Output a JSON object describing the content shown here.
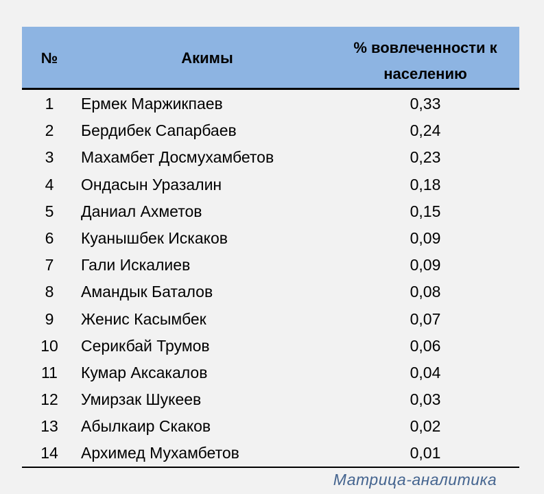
{
  "table": {
    "headers": {
      "num": "№",
      "name": "Акимы",
      "value": "% вовлеченности к населению"
    },
    "rows": [
      {
        "num": "1",
        "name": "Ермек Маржикпаев",
        "value": "0,33"
      },
      {
        "num": "2",
        "name": "Бердибек Сапарбаев",
        "value": "0,24"
      },
      {
        "num": "3",
        "name": "Махамбет Досмухамбетов",
        "value": "0,23"
      },
      {
        "num": "4",
        "name": "Ондасын Уразалин",
        "value": "0,18"
      },
      {
        "num": "5",
        "name": "Даниал Ахметов",
        "value": "0,15"
      },
      {
        "num": "6",
        "name": "Куанышбек Искаков",
        "value": "0,09"
      },
      {
        "num": "7",
        "name": "Гали Искалиев",
        "value": "0,09"
      },
      {
        "num": "8",
        "name": "Амандык Баталов",
        "value": "0,08"
      },
      {
        "num": "9",
        "name": "Женис Касымбек",
        "value": "0,07"
      },
      {
        "num": "10",
        "name": "Серикбай Трумов",
        "value": "0,06"
      },
      {
        "num": "11",
        "name": "Кумар Аксакалов",
        "value": "0,04"
      },
      {
        "num": "12",
        "name": "Умирзак Шукеев",
        "value": "0,03"
      },
      {
        "num": "13",
        "name": "Абылкаир Скаков",
        "value": "0,02"
      },
      {
        "num": "14",
        "name": "Архимед Мухамбетов",
        "value": "0,01"
      }
    ]
  },
  "footer": "Матрица-аналитика",
  "colors": {
    "header_bg": "#8db4e2",
    "background": "#f2f2f2",
    "footer_text": "#44648f"
  }
}
